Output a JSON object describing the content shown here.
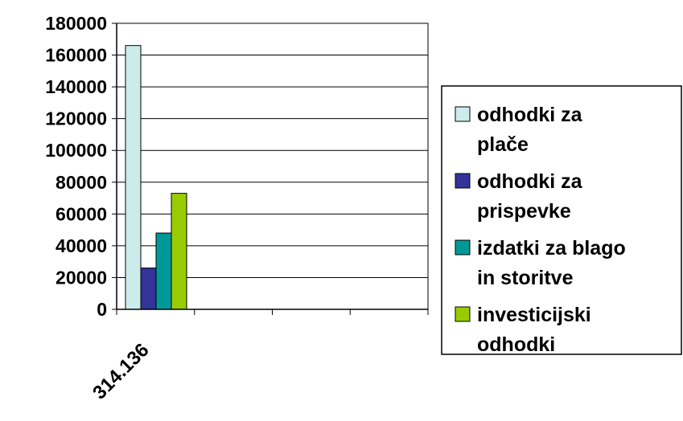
{
  "chart_data": {
    "type": "bar",
    "categories": [
      "314.136",
      "",
      "",
      ""
    ],
    "series": [
      {
        "name": "odhodki za plače",
        "color": "#CCECEC",
        "values": [
          166000,
          null,
          null,
          null
        ]
      },
      {
        "name": "odhodki za prispevke",
        "color": "#33339A",
        "values": [
          26000,
          null,
          null,
          null
        ]
      },
      {
        "name": "izdatki za blago in storitve",
        "color": "#009999",
        "values": [
          48000,
          null,
          null,
          null
        ]
      },
      {
        "name": "investicijski odhodki",
        "color": "#99CC00",
        "values": [
          73000,
          null,
          null,
          null
        ]
      }
    ],
    "legend_lines": [
      [
        "odhodki za",
        "plače"
      ],
      [
        "odhodki za",
        "prispevke"
      ],
      [
        "izdatki za blago",
        "in storitve"
      ],
      [
        "investicijski",
        "odhodki"
      ]
    ],
    "ylim": [
      0,
      180000
    ],
    "yticks": [
      0,
      20000,
      40000,
      60000,
      80000,
      100000,
      120000,
      140000,
      160000,
      180000
    ],
    "grid": true,
    "legend_position": "right"
  }
}
